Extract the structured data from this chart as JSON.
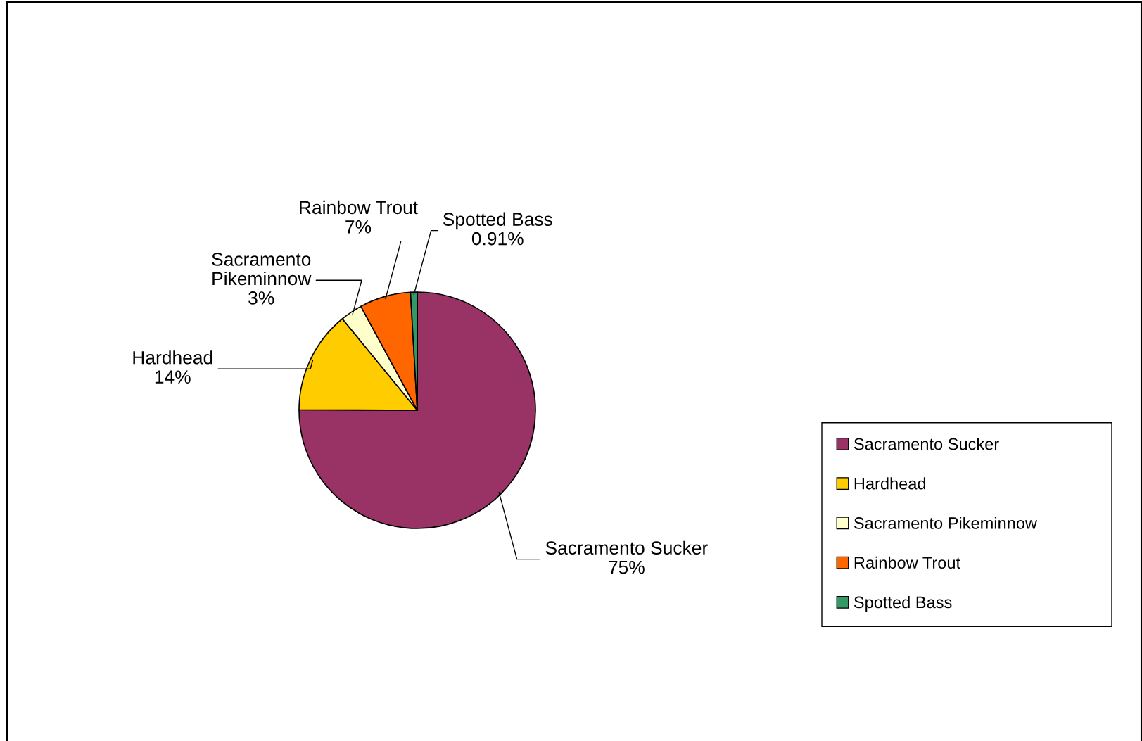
{
  "chart_data": {
    "type": "pie",
    "categories": [
      "Sacramento Sucker",
      "Hardhead",
      "Sacramento Pikeminnow",
      "Rainbow Trout",
      "Spotted Bass"
    ],
    "values": [
      75,
      14,
      3,
      7,
      0.91
    ],
    "value_labels": [
      "75%",
      "14%",
      "3%",
      "7%",
      "0.91%"
    ],
    "colors": [
      "#993366",
      "#ffcc00",
      "#ffffcc",
      "#ff6600",
      "#339966"
    ],
    "legend": "right"
  }
}
